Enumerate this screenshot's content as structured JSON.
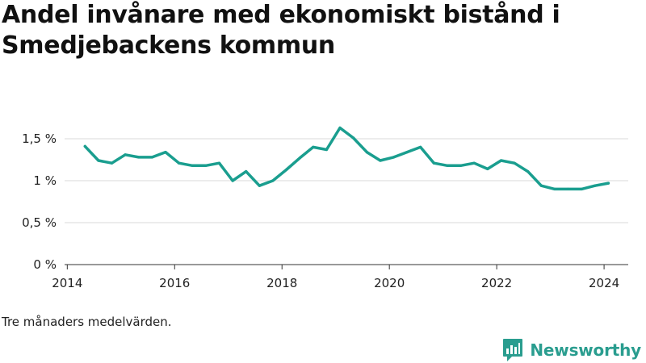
{
  "title": "Andel invånare med ekonomiskt bistånd i Smedjebackens kommun",
  "note": "Tre månaders medelvärden.",
  "brand": {
    "name": "Newsworthy",
    "icon": "bar-chart-speech-bubble-logo"
  },
  "colors": {
    "line": "#1a9e8f",
    "grid": "#d9d9d9",
    "axis": "#333333",
    "brand": "#2a9d8f"
  },
  "chart_data": {
    "type": "line",
    "title": "Andel invånare med ekonomiskt bistånd i Smedjebackens kommun",
    "xlabel": "",
    "ylabel": "",
    "xlim": [
      2013.95,
      2024.45
    ],
    "ylim": [
      0,
      1.5
    ],
    "grid": "horizontal",
    "x_ticks": [
      2014,
      2016,
      2018,
      2020,
      2022,
      2024
    ],
    "x_tick_labels": [
      "2014",
      "2016",
      "2018",
      "2020",
      "2022",
      "2024"
    ],
    "y_ticks": [
      0,
      0.5,
      1,
      1.5
    ],
    "y_tick_labels": [
      "0 %",
      "0,5 %",
      "1 %",
      "1,5 %"
    ],
    "series": [
      {
        "x": [
          2014.33,
          2014.58,
          2014.83,
          2015.08,
          2015.33,
          2015.58,
          2015.83,
          2016.08,
          2016.33,
          2016.58,
          2016.83,
          2017.08,
          2017.33,
          2017.58,
          2017.83,
          2018.08,
          2018.33,
          2018.58,
          2018.83,
          2019.08,
          2019.33,
          2019.58,
          2019.83,
          2020.08,
          2020.33,
          2020.58,
          2020.83,
          2021.08,
          2021.33,
          2021.58,
          2021.83,
          2022.08,
          2022.33,
          2022.58,
          2022.83,
          2023.08,
          2023.33,
          2023.58,
          2023.83,
          2024.08
        ],
        "values": [
          1.41,
          1.24,
          1.21,
          1.31,
          1.28,
          1.28,
          1.34,
          1.21,
          1.18,
          1.18,
          1.21,
          1.0,
          1.11,
          0.94,
          1.0,
          1.13,
          1.27,
          1.4,
          1.37,
          1.63,
          1.51,
          1.34,
          1.24,
          1.28,
          1.34,
          1.4,
          1.21,
          1.18,
          1.18,
          1.21,
          1.14,
          1.24,
          1.21,
          1.11,
          0.94,
          0.9,
          0.9,
          0.9,
          0.94,
          0.97
        ]
      }
    ]
  }
}
